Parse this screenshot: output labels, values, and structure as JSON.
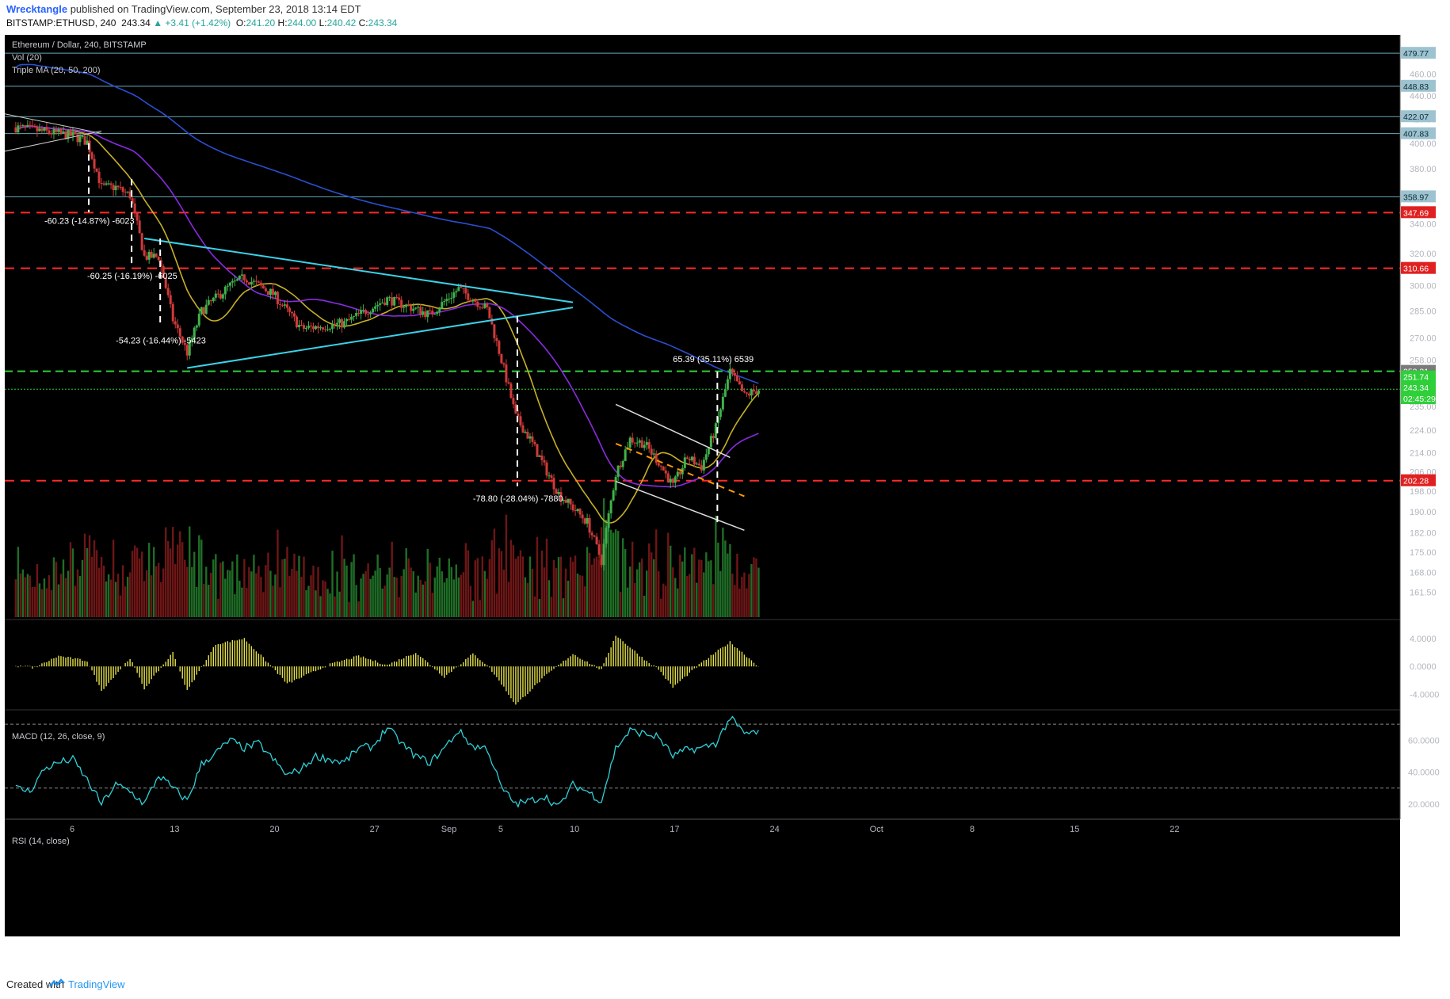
{
  "header": {
    "author": "Wrecktangle",
    "published": "published on TradingView.com, September 23, 2018 13:14 EDT",
    "symbol": "BITSTAMP:ETHUSD, 240",
    "last": "243.34",
    "change": "▲ +3.41 (+1.42%)",
    "o_label": "O:",
    "o": "241.20",
    "h_label": "H:",
    "h": "244.00",
    "l_label": "L:",
    "l": "240.42",
    "c_label": "C:",
    "c": "243.34"
  },
  "footer": {
    "created": "Created with",
    "brand": "TradingView",
    "logo_icon": "tradingview-logo-icon"
  },
  "legend": {
    "title": "Ethereum / Dollar, 240, BITSTAMP",
    "vol": "Vol (20)",
    "ma": "Triple MA (20, 50, 200)",
    "macd": "MACD (12, 26, close, 9)",
    "rsi": "RSI (14, close)"
  },
  "colors": {
    "background": "#000000",
    "up": "#3fb24c",
    "down": "#d03a3a",
    "vol_up": "#1f6e26",
    "vol_down": "#6e1616",
    "ma20": "#c7b027",
    "ma50": "#8a2be2",
    "ma200": "#2a4fd0",
    "triangle": "#3ad2e8",
    "support": "#ff2a2a",
    "resistance": "#6aa8b8",
    "macd": "#e6e24a",
    "rsi": "#2fd0d8",
    "green_level": "#2fcf3a"
  },
  "chart_data": [
    {
      "type": "candlestick",
      "title": "Ethereum / Dollar, 240, BITSTAMP",
      "ylim": [
        156,
        490
      ],
      "y_ticks": [
        "480.00",
        "460.00",
        "440.00",
        "420.00",
        "400.00",
        "380.00",
        "360.00",
        "340.00",
        "320.00",
        "300.00",
        "285.00",
        "270.00",
        "258.00",
        "246.00",
        "235.00",
        "224.00",
        "214.00",
        "206.00",
        "198.00",
        "190.00",
        "182.00",
        "175.00",
        "168.00",
        "161.50"
      ],
      "x_tick_labels": [
        "6",
        "13",
        "20",
        "27",
        "Sep",
        "5",
        "10",
        "17",
        "24",
        "Oct",
        "8",
        "15",
        "22"
      ],
      "moving_averages": [
        "20",
        "50",
        "200"
      ],
      "price_anchors": [
        {
          "date": "Aug 2",
          "price": 413
        },
        {
          "date": "Aug 6",
          "price": 406
        },
        {
          "date": "Aug 7",
          "price": 401
        },
        {
          "date": "Aug 8",
          "price": 366
        },
        {
          "date": "Aug 9",
          "price": 366
        },
        {
          "date": "Aug 10",
          "price": 360
        },
        {
          "date": "Aug 11",
          "price": 318
        },
        {
          "date": "Aug 12",
          "price": 318
        },
        {
          "date": "Aug 13",
          "price": 280
        },
        {
          "date": "Aug 14",
          "price": 262
        },
        {
          "date": "Aug 15",
          "price": 285
        },
        {
          "date": "Aug 17",
          "price": 300
        },
        {
          "date": "Aug 18",
          "price": 305
        },
        {
          "date": "Aug 20",
          "price": 295
        },
        {
          "date": "Aug 22",
          "price": 275
        },
        {
          "date": "Aug 25",
          "price": 278
        },
        {
          "date": "Aug 28",
          "price": 292
        },
        {
          "date": "Aug 31",
          "price": 283
        },
        {
          "date": "Sep 2",
          "price": 298
        },
        {
          "date": "Sep 4",
          "price": 286
        },
        {
          "date": "Sep 5",
          "price": 258
        },
        {
          "date": "Sep 6",
          "price": 230
        },
        {
          "date": "Sep 7",
          "price": 220
        },
        {
          "date": "Sep 8",
          "price": 208
        },
        {
          "date": "Sep 9",
          "price": 197
        },
        {
          "date": "Sep 11",
          "price": 186
        },
        {
          "date": "Sep 12",
          "price": 172
        },
        {
          "date": "Sep 13",
          "price": 205
        },
        {
          "date": "Sep 14",
          "price": 220
        },
        {
          "date": "Sep 15",
          "price": 218
        },
        {
          "date": "Sep 16",
          "price": 210
        },
        {
          "date": "Sep 17",
          "price": 200
        },
        {
          "date": "Sep 18",
          "price": 212
        },
        {
          "date": "Sep 19",
          "price": 208
        },
        {
          "date": "Sep 20",
          "price": 225
        },
        {
          "date": "Sep 21",
          "price": 252
        },
        {
          "date": "Sep 22",
          "price": 240
        },
        {
          "date": "Sep 23",
          "price": 243.34
        }
      ],
      "horizontal_levels": [
        {
          "value": 479.77,
          "label": "479.77",
          "kind": "resistance"
        },
        {
          "value": 448.83,
          "label": "448.83",
          "kind": "resistance"
        },
        {
          "value": 422.07,
          "label": "422.07",
          "kind": "resistance"
        },
        {
          "value": 407.83,
          "label": "407.83",
          "kind": "resistance"
        },
        {
          "value": 358.97,
          "label": "358.97",
          "kind": "resistance"
        },
        {
          "value": 347.69,
          "label": "347.69",
          "kind": "support"
        },
        {
          "value": 310.66,
          "label": "310.66",
          "kind": "support"
        },
        {
          "value": 252.31,
          "label": "252.31",
          "kind": "green"
        },
        {
          "value": 202.28,
          "label": "202.28",
          "kind": "support"
        }
      ],
      "price_labels": {
        "last": "251.74",
        "close": "243.34",
        "countdown": "02:45:29"
      },
      "measurements": [
        {
          "text": "-60.23 (-14.87%) -6023"
        },
        {
          "text": "-60.25 (-16.19%) -6025"
        },
        {
          "text": "-54.23 (-16.44%) -5423"
        },
        {
          "text": "-78.80 (-28.04%) -7880"
        },
        {
          "text": "65.39 (35.11%) 6539"
        }
      ]
    },
    {
      "type": "bar",
      "title": "MACD (12, 26, close, 9)",
      "y_ticks": [
        "4.0000",
        "0.0000",
        "-4.0000"
      ],
      "ylim": [
        -6,
        6.5
      ],
      "histogram_anchors": [
        {
          "date": "Aug 3",
          "value": -0.5
        },
        {
          "date": "Aug 5",
          "value": 1.5
        },
        {
          "date": "Aug 7",
          "value": 0.8
        },
        {
          "date": "Aug 8",
          "value": -3.5
        },
        {
          "date": "Aug 10",
          "value": 1.2
        },
        {
          "date": "Aug 11",
          "value": -3.2
        },
        {
          "date": "Aug 13",
          "value": 2.0
        },
        {
          "date": "Aug 14",
          "value": -3.5
        },
        {
          "date": "Aug 16",
          "value": 3.2
        },
        {
          "date": "Aug 18",
          "value": 4.0
        },
        {
          "date": "Aug 20",
          "value": -0.2
        },
        {
          "date": "Aug 21",
          "value": -2.5
        },
        {
          "date": "Aug 24",
          "value": 0.3
        },
        {
          "date": "Aug 26",
          "value": 1.5
        },
        {
          "date": "Aug 28",
          "value": 0.2
        },
        {
          "date": "Aug 30",
          "value": 2.0
        },
        {
          "date": "Sep 1",
          "value": -1.5
        },
        {
          "date": "Sep 3",
          "value": 1.8
        },
        {
          "date": "Sep 4",
          "value": 0.2
        },
        {
          "date": "Sep 5",
          "value": -2.5
        },
        {
          "date": "Sep 6",
          "value": -5.5
        },
        {
          "date": "Sep 8",
          "value": -1.5
        },
        {
          "date": "Sep 10",
          "value": 1.8
        },
        {
          "date": "Sep 12",
          "value": -0.5
        },
        {
          "date": "Sep 13",
          "value": 4.5
        },
        {
          "date": "Sep 15",
          "value": 1.0
        },
        {
          "date": "Sep 16",
          "value": -0.4
        },
        {
          "date": "Sep 17",
          "value": -3.0
        },
        {
          "date": "Sep 19",
          "value": 0.5
        },
        {
          "date": "Sep 21",
          "value": 3.5
        },
        {
          "date": "Sep 23",
          "value": 0.0
        }
      ]
    },
    {
      "type": "line",
      "title": "RSI (14, close)",
      "y_ticks": [
        "60.0000",
        "40.0000",
        "20.0000"
      ],
      "ylim": [
        13,
        78
      ],
      "levels": [
        70,
        30
      ],
      "rsi_anchors": [
        {
          "date": "Aug 2",
          "value": 30
        },
        {
          "date": "Aug 3",
          "value": 28
        },
        {
          "date": "Aug 4",
          "value": 42
        },
        {
          "date": "Aug 5",
          "value": 46
        },
        {
          "date": "Aug 6",
          "value": 48
        },
        {
          "date": "Aug 7",
          "value": 35
        },
        {
          "date": "Aug 8",
          "value": 20
        },
        {
          "date": "Aug 9",
          "value": 32
        },
        {
          "date": "Aug 10",
          "value": 28
        },
        {
          "date": "Aug 11",
          "value": 20
        },
        {
          "date": "Aug 12",
          "value": 38
        },
        {
          "date": "Aug 13",
          "value": 30
        },
        {
          "date": "Aug 14",
          "value": 22
        },
        {
          "date": "Aug 15",
          "value": 45
        },
        {
          "date": "Aug 16",
          "value": 52
        },
        {
          "date": "Aug 17",
          "value": 60
        },
        {
          "date": "Aug 18",
          "value": 55
        },
        {
          "date": "Aug 19",
          "value": 58
        },
        {
          "date": "Aug 20",
          "value": 48
        },
        {
          "date": "Aug 21",
          "value": 38
        },
        {
          "date": "Aug 22",
          "value": 42
        },
        {
          "date": "Aug 23",
          "value": 50
        },
        {
          "date": "Aug 25",
          "value": 46
        },
        {
          "date": "Aug 26",
          "value": 55
        },
        {
          "date": "Aug 27",
          "value": 56
        },
        {
          "date": "Aug 28",
          "value": 68
        },
        {
          "date": "Aug 29",
          "value": 58
        },
        {
          "date": "Aug 30",
          "value": 50
        },
        {
          "date": "Aug 31",
          "value": 46
        },
        {
          "date": "Sep 1",
          "value": 55
        },
        {
          "date": "Sep 2",
          "value": 66
        },
        {
          "date": "Sep 3",
          "value": 56
        },
        {
          "date": "Sep 4",
          "value": 55
        },
        {
          "date": "Sep 5",
          "value": 30
        },
        {
          "date": "Sep 6",
          "value": 20
        },
        {
          "date": "Sep 7",
          "value": 22
        },
        {
          "date": "Sep 8",
          "value": 25
        },
        {
          "date": "Sep 9",
          "value": 18
        },
        {
          "date": "Sep 10",
          "value": 32
        },
        {
          "date": "Sep 11",
          "value": 28
        },
        {
          "date": "Sep 12",
          "value": 22
        },
        {
          "date": "Sep 13",
          "value": 55
        },
        {
          "date": "Sep 14",
          "value": 66
        },
        {
          "date": "Sep 15",
          "value": 64
        },
        {
          "date": "Sep 16",
          "value": 62
        },
        {
          "date": "Sep 17",
          "value": 50
        },
        {
          "date": "Sep 18",
          "value": 54
        },
        {
          "date": "Sep 19",
          "value": 55
        },
        {
          "date": "Sep 20",
          "value": 58
        },
        {
          "date": "Sep 21",
          "value": 74
        },
        {
          "date": "Sep 22",
          "value": 64
        },
        {
          "date": "Sep 23",
          "value": 65
        }
      ]
    }
  ]
}
